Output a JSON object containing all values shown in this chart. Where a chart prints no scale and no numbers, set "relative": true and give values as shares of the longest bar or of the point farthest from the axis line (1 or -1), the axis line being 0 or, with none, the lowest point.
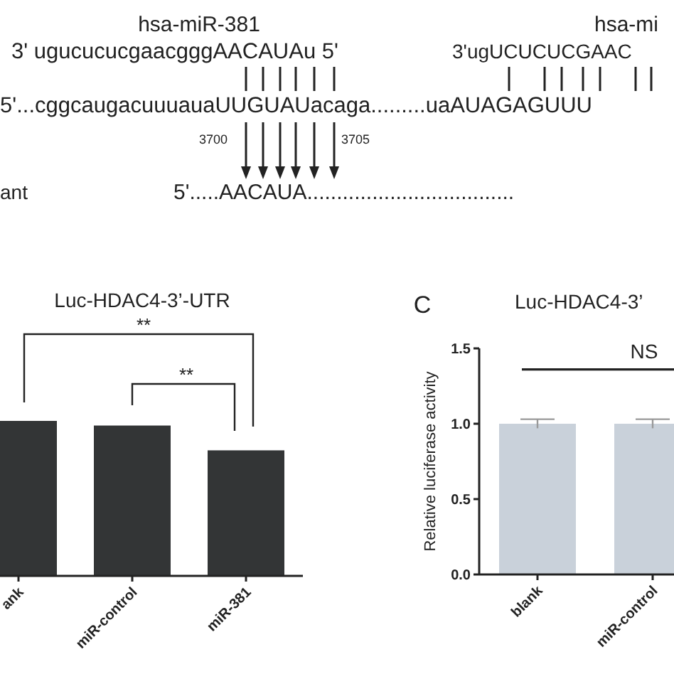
{
  "chart_data": [
    {
      "type": "other",
      "annotations": [
        "hsa-miR-381",
        "3' ugucucucgaacgggAACAUAu 5'",
        "5'...cggcaugacuuuauaUUGUAUacaga.........uaAUAGAGUUU",
        "3700",
        "3705",
        "ant",
        "5'.....AACAUA...................................",
        "hsa-mi",
        "3'ugUCUCUCGAAC"
      ]
    },
    {
      "type": "bar",
      "title": "Luc-HDAC4-3’-UTR",
      "categories": [
        "ank",
        "miR-control",
        "miR-381"
      ],
      "values": [
        1,
        0.97,
        0.81
      ],
      "color": "#333536",
      "relative": true,
      "annotations": [
        "**",
        "**"
      ]
    },
    {
      "type": "bar",
      "title": "Luc-HDAC4-3’",
      "ylabel": "Relative luciferase activity",
      "categories": [
        "blank",
        "miR-control"
      ],
      "values": [
        1.0,
        1.0
      ],
      "errors": [
        0.03,
        0.03
      ],
      "color": "#c9d1da",
      "ylim": [
        0,
        1.5
      ],
      "yticks": [
        {
          "value": 0,
          "label": "0.0"
        },
        {
          "value": 0.5,
          "label": "0.5"
        },
        {
          "value": 1,
          "label": "1.0"
        },
        {
          "value": 1.5,
          "label": "1.5"
        }
      ],
      "annotations": [
        "C"
      ],
      "ref_lines": [
        {
          "axis": "y",
          "value": 1.36,
          "label": "NS"
        }
      ]
    }
  ]
}
